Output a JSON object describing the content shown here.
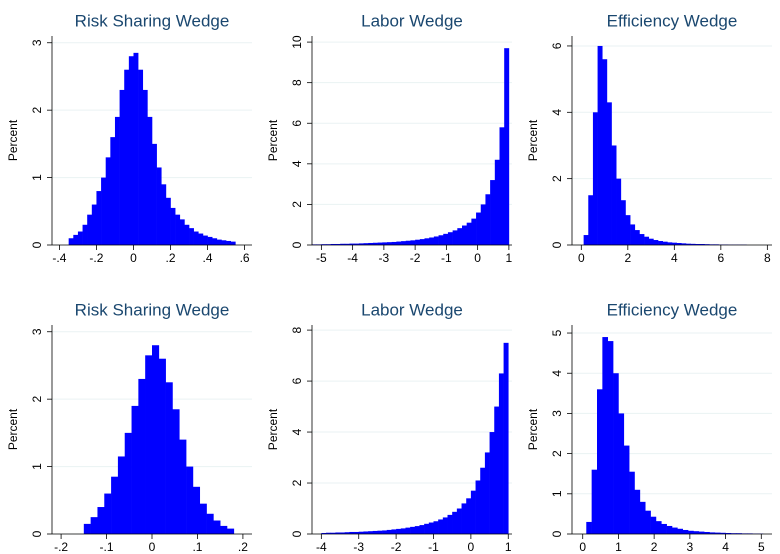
{
  "chart_data": [
    {
      "type": "histogram",
      "title": "Risk Sharing Wedge",
      "ylabel": "Percent",
      "color": "#0000ff",
      "grid": true,
      "bins": [
        -0.35,
        -0.325,
        -0.3,
        -0.275,
        -0.25,
        -0.225,
        -0.2,
        -0.175,
        -0.15,
        -0.125,
        -0.1,
        -0.075,
        -0.05,
        -0.025,
        0,
        0.025,
        0.05,
        0.075,
        0.1,
        0.125,
        0.15,
        0.175,
        0.2,
        0.225,
        0.25,
        0.275,
        0.3,
        0.325,
        0.35,
        0.375,
        0.4,
        0.425,
        0.45,
        0.475,
        0.5,
        0.525,
        0.55
      ],
      "values": [
        0.1,
        0.15,
        0.2,
        0.3,
        0.45,
        0.6,
        0.8,
        1.0,
        1.3,
        1.6,
        1.9,
        2.3,
        2.6,
        2.8,
        2.85,
        2.6,
        2.3,
        1.9,
        1.5,
        1.15,
        0.9,
        0.7,
        0.55,
        0.45,
        0.38,
        0.3,
        0.25,
        0.2,
        0.17,
        0.14,
        0.12,
        0.1,
        0.08,
        0.07,
        0.06,
        0.05
      ],
      "xlim": [
        -0.44,
        0.64
      ],
      "ylim": [
        0,
        3.1
      ],
      "xticks": [
        {
          "value": -0.4,
          "label": "-.4"
        },
        {
          "value": -0.2,
          "label": "-.2"
        },
        0,
        {
          "value": 0.2,
          "label": ".2"
        },
        {
          "value": 0.4,
          "label": ".4"
        },
        {
          "value": 0.6,
          "label": ".6"
        }
      ],
      "yticks": [
        0,
        1,
        2,
        3
      ]
    },
    {
      "type": "histogram",
      "title": "Labor Wedge",
      "ylabel": "Percent",
      "color": "#0000ff",
      "grid": true,
      "bins": [
        -5.3,
        -5.15,
        -5,
        -4.85,
        -4.7,
        -4.55,
        -4.4,
        -4.25,
        -4.1,
        -3.95,
        -3.8,
        -3.65,
        -3.5,
        -3.35,
        -3.2,
        -3.05,
        -2.9,
        -2.75,
        -2.6,
        -2.45,
        -2.3,
        -2.15,
        -2,
        -1.85,
        -1.7,
        -1.55,
        -1.4,
        -1.25,
        -1.1,
        -0.95,
        -0.8,
        -0.65,
        -0.5,
        -0.35,
        -0.2,
        -0.05,
        0.1,
        0.25,
        0.4,
        0.55,
        0.7,
        0.85,
        1
      ],
      "values": [
        0.03,
        0.03,
        0.04,
        0.04,
        0.05,
        0.05,
        0.06,
        0.06,
        0.07,
        0.07,
        0.08,
        0.09,
        0.1,
        0.11,
        0.12,
        0.13,
        0.14,
        0.15,
        0.17,
        0.19,
        0.21,
        0.23,
        0.26,
        0.29,
        0.33,
        0.37,
        0.42,
        0.48,
        0.55,
        0.63,
        0.72,
        0.83,
        0.96,
        1.1,
        1.3,
        1.6,
        2.0,
        2.5,
        3.2,
        4.2,
        5.8,
        9.7
      ],
      "xlim": [
        -5.3,
        1.1
      ],
      "ylim": [
        0,
        10.3
      ],
      "xticks": [
        -5,
        -4,
        -3,
        -2,
        -1,
        0,
        1
      ],
      "yticks": [
        0,
        2,
        4,
        6,
        8,
        10
      ]
    },
    {
      "type": "histogram",
      "title": "Efficiency Wedge",
      "ylabel": "Percent",
      "color": "#0000ff",
      "grid": true,
      "bins": [
        0.1,
        0.3,
        0.5,
        0.7,
        0.9,
        1.1,
        1.3,
        1.5,
        1.7,
        1.9,
        2.1,
        2.3,
        2.5,
        2.7,
        2.9,
        3.1,
        3.3,
        3.5,
        3.7,
        3.9,
        4.1,
        4.3,
        4.5,
        4.7,
        4.9,
        5.1,
        5.3,
        5.5,
        5.7,
        5.9,
        6.1,
        6.3,
        6.5,
        6.7,
        6.9,
        7.1
      ],
      "values": [
        0.3,
        1.5,
        4.0,
        6.0,
        5.6,
        4.3,
        3.0,
        2.0,
        1.35,
        0.9,
        0.62,
        0.45,
        0.33,
        0.25,
        0.19,
        0.15,
        0.12,
        0.1,
        0.08,
        0.07,
        0.06,
        0.05,
        0.04,
        0.035,
        0.03,
        0.03,
        0.025,
        0.02,
        0.02,
        0.015,
        0.015,
        0.01,
        0.01,
        0.01,
        0.01
      ],
      "xlim": [
        -0.4,
        8.2
      ],
      "ylim": [
        0,
        6.3
      ],
      "xticks": [
        0,
        2,
        4,
        6,
        8
      ],
      "yticks": [
        0,
        2,
        4,
        6
      ]
    },
    {
      "type": "histogram",
      "title": "Risk Sharing Wedge",
      "ylabel": "Percent",
      "color": "#0000ff",
      "grid": true,
      "bins": [
        -0.15,
        -0.135,
        -0.12,
        -0.105,
        -0.09,
        -0.075,
        -0.06,
        -0.045,
        -0.03,
        -0.015,
        0,
        0.015,
        0.03,
        0.045,
        0.06,
        0.075,
        0.09,
        0.105,
        0.12,
        0.135,
        0.15,
        0.165,
        0.18
      ],
      "values": [
        0.15,
        0.25,
        0.4,
        0.6,
        0.85,
        1.15,
        1.5,
        1.9,
        2.3,
        2.65,
        2.8,
        2.6,
        2.25,
        1.85,
        1.4,
        1.0,
        0.7,
        0.45,
        0.3,
        0.2,
        0.12,
        0.08
      ],
      "xlim": [
        -0.22,
        0.22
      ],
      "ylim": [
        0,
        3.1
      ],
      "xticks": [
        {
          "value": -0.2,
          "label": "-.2"
        },
        {
          "value": -0.1,
          "label": "-.1"
        },
        0,
        {
          "value": 0.1,
          "label": ".1"
        },
        {
          "value": 0.2,
          "label": ".2"
        }
      ],
      "yticks": [
        0,
        1,
        2,
        3
      ]
    },
    {
      "type": "histogram",
      "title": "Labor Wedge",
      "ylabel": "Percent",
      "color": "#0000ff",
      "grid": true,
      "bins": [
        -4,
        -3.875,
        -3.75,
        -3.625,
        -3.5,
        -3.375,
        -3.25,
        -3.125,
        -3,
        -2.875,
        -2.75,
        -2.625,
        -2.5,
        -2.375,
        -2.25,
        -2.125,
        -2,
        -1.875,
        -1.75,
        -1.625,
        -1.5,
        -1.375,
        -1.25,
        -1.125,
        -1,
        -0.875,
        -0.75,
        -0.625,
        -0.5,
        -0.375,
        -0.25,
        -0.125,
        0,
        0.125,
        0.25,
        0.375,
        0.5,
        0.625,
        0.75,
        0.875,
        1
      ],
      "values": [
        0.04,
        0.05,
        0.05,
        0.06,
        0.06,
        0.07,
        0.08,
        0.08,
        0.09,
        0.1,
        0.11,
        0.12,
        0.13,
        0.14,
        0.16,
        0.18,
        0.2,
        0.22,
        0.25,
        0.28,
        0.31,
        0.35,
        0.4,
        0.45,
        0.5,
        0.57,
        0.65,
        0.75,
        0.87,
        1.0,
        1.2,
        1.4,
        1.7,
        2.1,
        2.6,
        3.2,
        4.0,
        5.0,
        6.3,
        7.5
      ],
      "xlim": [
        -4.25,
        1.1
      ],
      "ylim": [
        0,
        8.2
      ],
      "xticks": [
        -4,
        -3,
        -2,
        -1,
        0,
        1
      ],
      "yticks": [
        0,
        2,
        4,
        6,
        8
      ]
    },
    {
      "type": "histogram",
      "title": "Efficiency Wedge",
      "ylabel": "Percent",
      "color": "#0000ff",
      "grid": true,
      "bins": [
        0.1,
        0.25,
        0.4,
        0.55,
        0.7,
        0.85,
        1,
        1.15,
        1.3,
        1.45,
        1.6,
        1.75,
        1.9,
        2.05,
        2.2,
        2.35,
        2.5,
        2.65,
        2.8,
        2.95,
        3.1,
        3.25,
        3.4,
        3.55,
        3.7,
        3.85,
        4,
        4.15,
        4.3,
        4.45,
        4.6,
        4.75,
        4.9,
        5.05
      ],
      "values": [
        0.3,
        1.6,
        3.6,
        4.9,
        4.8,
        4.0,
        3.0,
        2.2,
        1.55,
        1.1,
        0.8,
        0.58,
        0.43,
        0.32,
        0.25,
        0.2,
        0.16,
        0.13,
        0.1,
        0.08,
        0.07,
        0.06,
        0.05,
        0.04,
        0.035,
        0.03,
        0.025,
        0.02,
        0.02,
        0.015,
        0.015,
        0.01,
        0.01
      ],
      "xlim": [
        -0.3,
        5.3
      ],
      "ylim": [
        0,
        5.2
      ],
      "xticks": [
        0,
        1,
        2,
        3,
        4,
        5
      ],
      "yticks": [
        0,
        1,
        2,
        3,
        4,
        5
      ]
    }
  ]
}
